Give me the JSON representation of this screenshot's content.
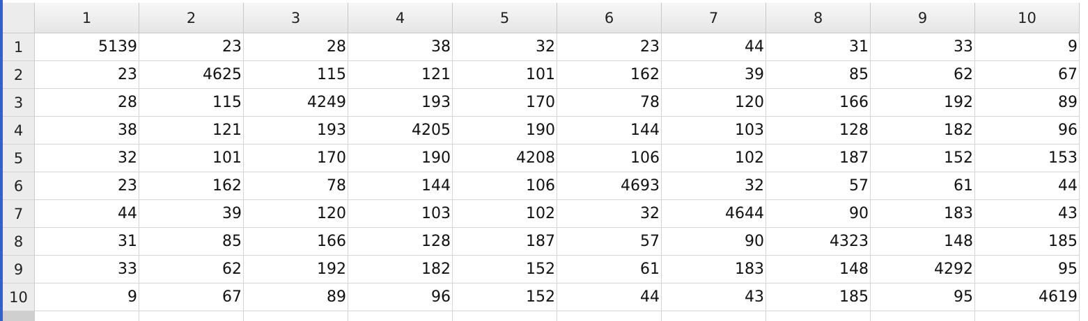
{
  "table": {
    "column_headers": [
      "1",
      "2",
      "3",
      "4",
      "5",
      "6",
      "7",
      "8",
      "9",
      "10"
    ],
    "row_headers": [
      "1",
      "2",
      "3",
      "4",
      "5",
      "6",
      "7",
      "8",
      "9",
      "10"
    ],
    "rows": [
      [
        "5139",
        "23",
        "28",
        "38",
        "32",
        "23",
        "44",
        "31",
        "33",
        "9"
      ],
      [
        "23",
        "4625",
        "115",
        "121",
        "101",
        "162",
        "39",
        "85",
        "62",
        "67"
      ],
      [
        "28",
        "115",
        "4249",
        "193",
        "170",
        "78",
        "120",
        "166",
        "192",
        "89"
      ],
      [
        "38",
        "121",
        "193",
        "4205",
        "190",
        "144",
        "103",
        "128",
        "182",
        "96"
      ],
      [
        "32",
        "101",
        "170",
        "190",
        "4208",
        "106",
        "102",
        "187",
        "152",
        "153"
      ],
      [
        "23",
        "162",
        "78",
        "144",
        "106",
        "4693",
        "32",
        "57",
        "61",
        "44"
      ],
      [
        "44",
        "39",
        "120",
        "103",
        "102",
        "32",
        "4644",
        "90",
        "183",
        "43"
      ],
      [
        "31",
        "85",
        "166",
        "128",
        "187",
        "57",
        "90",
        "4323",
        "148",
        "185"
      ],
      [
        "33",
        "62",
        "192",
        "182",
        "152",
        "61",
        "183",
        "148",
        "4292",
        "95"
      ],
      [
        "9",
        "67",
        "89",
        "96",
        "152",
        "44",
        "43",
        "185",
        "95",
        "4619"
      ]
    ]
  },
  "colors": {
    "window_edge": "#2f63c9",
    "grid_line": "#d4d4d4",
    "header_bg": "#ececec"
  }
}
